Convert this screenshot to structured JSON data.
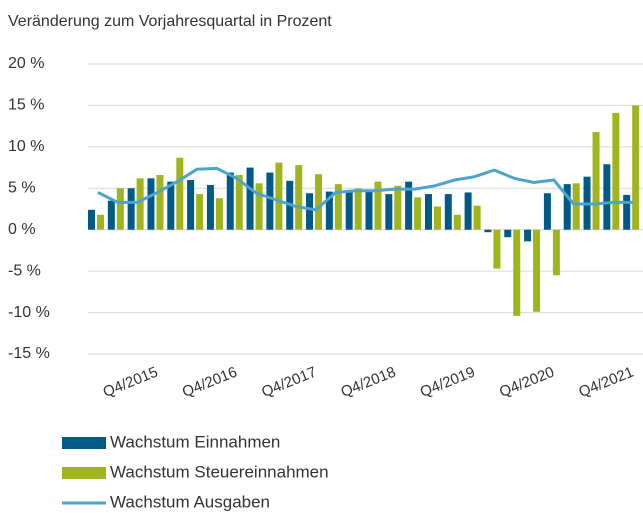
{
  "chart_data": {
    "type": "bar_line",
    "subtitle": "Veränderung zum Vorjahresquartal in Prozent",
    "categories": [
      null,
      null,
      null,
      "Q4/2015",
      null,
      null,
      null,
      "Q4/2016",
      null,
      null,
      null,
      "Q4/2017",
      null,
      null,
      null,
      "Q4/2018",
      null,
      null,
      null,
      "Q4/2019",
      null,
      null,
      null,
      "Q4/2020",
      null,
      null,
      null,
      "Q4/2021"
    ],
    "series": [
      {
        "name": "Wachstum Einnahmen",
        "color": "#005a87",
        "kind": "bar",
        "values": [
          2.4,
          3.5,
          5.0,
          6.2,
          5.8,
          6.0,
          5.4,
          6.9,
          7.5,
          6.9,
          5.9,
          4.4,
          4.6,
          4.8,
          4.6,
          4.3,
          5.8,
          4.3,
          4.3,
          4.5,
          -0.3,
          -0.9,
          -1.4,
          4.4,
          5.5,
          6.4,
          7.9,
          4.2
        ]
      },
      {
        "name": "Wachstum Steuereinnahmen",
        "color": "#a0b41e",
        "kind": "bar",
        "values": [
          1.8,
          5.0,
          6.2,
          6.6,
          8.7,
          4.3,
          3.8,
          6.6,
          5.6,
          8.1,
          7.8,
          6.7,
          5.5,
          5.0,
          5.8,
          5.3,
          3.9,
          2.8,
          1.8,
          2.9,
          -4.7,
          -10.4,
          -9.9,
          -5.5,
          5.6,
          11.8,
          14.1,
          15.0
        ]
      },
      {
        "name": "Wachstum Ausgaben",
        "color": "#4ea3c8",
        "kind": "line",
        "values": [
          4.5,
          3.3,
          3.3,
          4.5,
          5.8,
          7.3,
          7.4,
          6.2,
          4.4,
          3.6,
          2.8,
          2.4,
          4.5,
          4.7,
          4.7,
          4.9,
          4.9,
          5.3,
          6.0,
          6.4,
          7.2,
          6.2,
          5.7,
          6.0,
          3.1,
          3.1,
          3.3,
          3.3
        ]
      }
    ],
    "ylim": [
      -15,
      20
    ],
    "yticks": [
      {
        "value": -15,
        "label": "-15 %"
      },
      {
        "value": -10,
        "label": "-10 %"
      },
      {
        "value": -5,
        "label": "-5 %"
      },
      {
        "value": 0,
        "label": "0 %"
      },
      {
        "value": 5,
        "label": "5 %"
      },
      {
        "value": 10,
        "label": "10 %"
      },
      {
        "value": 15,
        "label": "15 %"
      },
      {
        "value": 20,
        "label": "20 %"
      }
    ],
    "grid": true
  }
}
